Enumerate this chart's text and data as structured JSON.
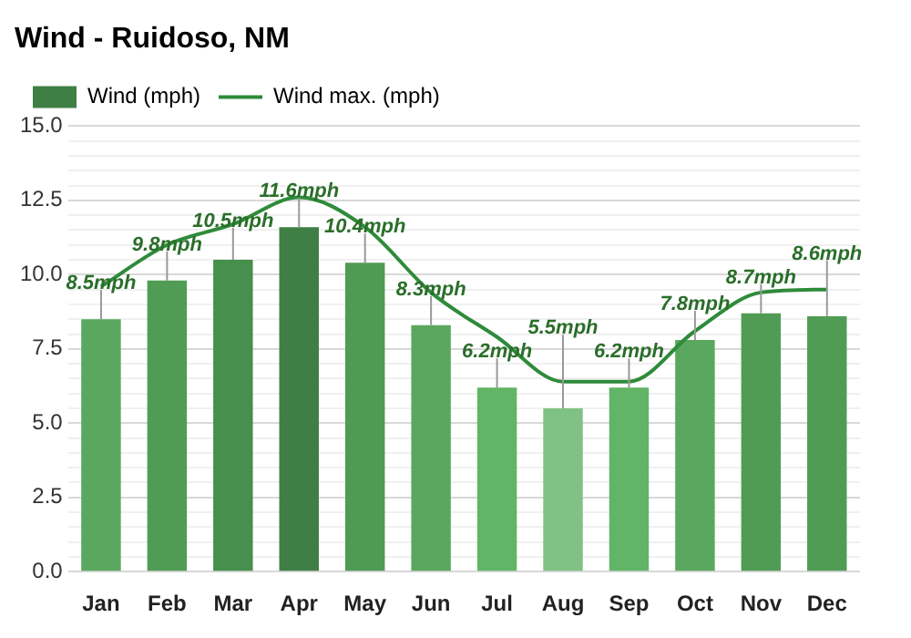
{
  "chart_data": {
    "type": "bar",
    "title": "Wind - Ruidoso, NM",
    "categories": [
      "Jan",
      "Feb",
      "Mar",
      "Apr",
      "May",
      "Jun",
      "Jul",
      "Aug",
      "Sep",
      "Oct",
      "Nov",
      "Dec"
    ],
    "series": [
      {
        "name": "Wind (mph)",
        "colors": [
          "#5aa85f",
          "#519c55",
          "#468f4c",
          "#3f7f45",
          "#4f9a54",
          "#5aa85f",
          "#62b466",
          "#80c283",
          "#62b466",
          "#5aa85f",
          "#519c55",
          "#519c55"
        ],
        "values": [
          8.5,
          9.8,
          10.5,
          11.6,
          10.4,
          8.3,
          6.2,
          5.5,
          6.2,
          7.8,
          8.7,
          8.6
        ],
        "value_labels": [
          "8.5mph",
          "9.8mph",
          "10.5mph",
          "11.6mph",
          "10.4mph",
          "8.3mph",
          "6.2mph",
          "5.5mph",
          "6.2mph",
          "7.8mph",
          "8.7mph",
          "8.6mph"
        ]
      },
      {
        "name": "Wind max. (mph)",
        "type": "line",
        "color": "#2e8b3a",
        "values": [
          9.6,
          11.0,
          11.7,
          12.6,
          11.6,
          9.4,
          7.9,
          6.4,
          6.4,
          8.1,
          9.4,
          9.5
        ]
      }
    ],
    "ylim": [
      0,
      15
    ],
    "yticks": [
      {
        "value": 0,
        "label": "0.0"
      },
      {
        "value": 0.5,
        "label": null
      },
      {
        "value": 1,
        "label": null
      },
      {
        "value": 1.5,
        "label": null
      },
      {
        "value": 2,
        "label": null
      },
      2.5,
      {
        "value": 3,
        "label": null
      },
      {
        "value": 3.5,
        "label": null
      },
      {
        "value": 4,
        "label": null
      },
      {
        "value": 4.5,
        "label": null
      },
      {
        "value": 5,
        "label": "5.0"
      },
      {
        "value": 5.5,
        "label": null
      },
      {
        "value": 6,
        "label": null
      },
      {
        "value": 6.5,
        "label": null
      },
      {
        "value": 7,
        "label": null
      },
      7.5,
      {
        "value": 8,
        "label": null
      },
      {
        "value": 8.5,
        "label": null
      },
      {
        "value": 9,
        "label": null
      },
      {
        "value": 9.5,
        "label": null
      },
      {
        "value": 10,
        "label": "10.0"
      },
      {
        "value": 10.5,
        "label": null
      },
      {
        "value": 11,
        "label": null
      },
      {
        "value": 11.5,
        "label": null
      },
      {
        "value": 12,
        "label": null
      },
      12.5,
      {
        "value": 13,
        "label": null
      },
      {
        "value": 13.5,
        "label": null
      },
      {
        "value": 14,
        "label": null
      },
      {
        "value": 14.5,
        "label": null
      },
      {
        "value": 15,
        "label": "15.0"
      }
    ],
    "grid": "y",
    "legend": "top left",
    "marker": "none"
  }
}
